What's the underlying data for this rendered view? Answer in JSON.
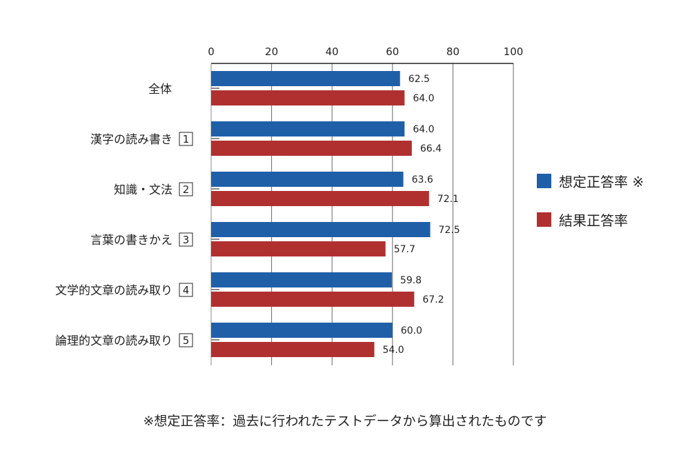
{
  "chart_data": {
    "type": "bar",
    "orientation": "horizontal",
    "categories": [
      {
        "label": "全体",
        "number": ""
      },
      {
        "label": "漢字の読み書き",
        "number": "1"
      },
      {
        "label": "知識・文法",
        "number": "2"
      },
      {
        "label": "言葉の書きかえ",
        "number": "3"
      },
      {
        "label": "文学的文章の読み取り",
        "number": "4"
      },
      {
        "label": "論理的文章の読み取り",
        "number": "5"
      }
    ],
    "series": [
      {
        "name": "想定正答率 ※",
        "color": "#1f5fa8",
        "values": [
          62.5,
          64.0,
          63.6,
          72.5,
          59.8,
          60.0
        ],
        "labels": [
          "62.5",
          "64.0",
          "63.6",
          "72.5",
          "59.8",
          "60.0"
        ]
      },
      {
        "name": "結果正答率",
        "color": "#b03030",
        "values": [
          64.0,
          66.4,
          72.1,
          57.7,
          67.2,
          54.0
        ],
        "labels": [
          "64.0",
          "66.4",
          "72.1",
          "57.7",
          "67.2",
          "54.0"
        ]
      }
    ],
    "xlim": [
      0,
      100
    ],
    "xticks": [
      "0",
      "20",
      "40",
      "60",
      "80",
      "100"
    ],
    "grid": true,
    "legend": "right"
  },
  "footnote": "※想定正答率：過去に行われたテストデータから算出されたものです"
}
